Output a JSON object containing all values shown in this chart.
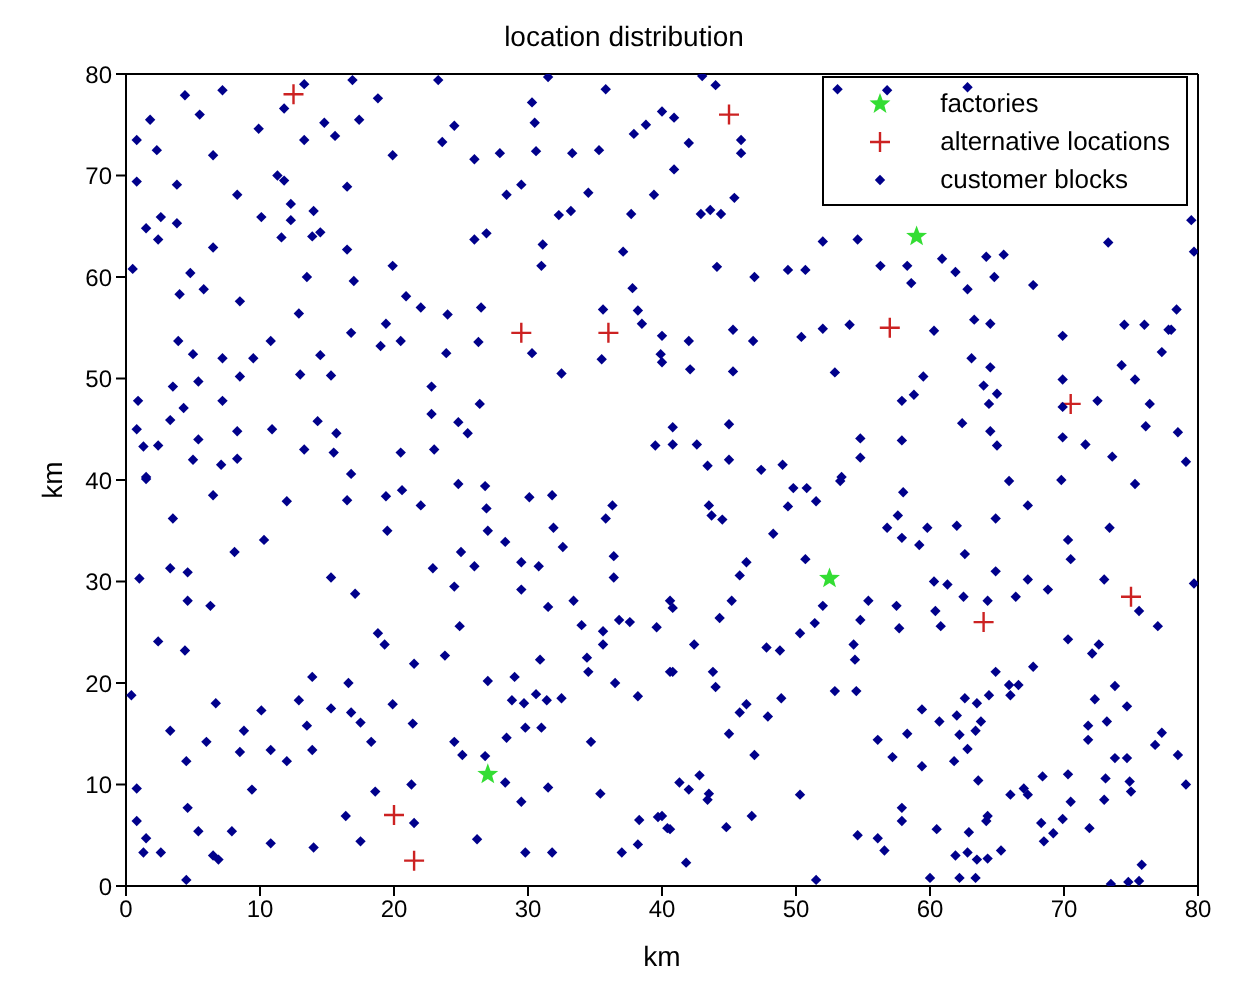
{
  "chart_data": {
    "type": "scatter",
    "title": "location distribution",
    "xlabel": "km",
    "ylabel": "km",
    "xlim": [
      0,
      80
    ],
    "ylim": [
      0,
      80
    ],
    "xticks": [
      0,
      10,
      20,
      30,
      40,
      50,
      60,
      70,
      80
    ],
    "yticks": [
      0,
      10,
      20,
      30,
      40,
      50,
      60,
      70,
      80
    ],
    "grid": false,
    "legend": "top right",
    "series": [
      {
        "name": "factories",
        "color": "#33dd33",
        "marker": "star",
        "x": [
          27,
          52.5,
          59
        ],
        "values": [
          11,
          30.3,
          64
        ]
      },
      {
        "name": "alternative locations",
        "color": "#cc2222",
        "marker": "cross",
        "x": [
          12.5,
          45,
          29.5,
          36,
          57,
          70.5,
          75,
          64,
          20,
          21.5
        ],
        "values": [
          78,
          76,
          54.5,
          54.5,
          55,
          47.5,
          28.5,
          26,
          7,
          2.5
        ]
      },
      {
        "name": "customer blocks",
        "color": "#00008b",
        "marker": "diamond",
        "x": [
          4.4,
          7.2,
          5.5,
          1.8,
          0.8,
          2.3,
          6.5,
          9.9,
          13.3,
          11.8,
          13.3,
          14.8,
          15.6,
          17.4,
          18.8,
          16.9,
          19.9,
          23.3,
          23.6,
          24.5,
          26,
          27.9,
          30.3,
          30.5,
          30.6,
          33.3,
          35.3,
          35.8,
          31.5,
          37.9,
          38.8,
          40,
          0.8,
          3.8,
          8.3,
          11.3,
          11.8,
          16.5,
          12.3,
          10.1,
          12.3,
          14,
          14.5,
          13.9,
          1.5,
          2.6,
          3.8,
          2.4,
          6.5,
          11.6,
          0.5,
          4.8,
          4,
          5.8,
          8.5,
          13.5,
          16.5,
          17,
          19.9,
          20.9,
          22,
          24,
          26.5,
          26,
          26.9,
          28.4,
          29.5,
          31.1,
          31,
          32.3,
          33.2,
          34.5,
          37.1,
          37.7,
          39.4,
          37.8,
          35.6,
          38.2,
          38.5,
          3.9,
          5,
          7.2,
          9.5,
          10.8,
          12.9,
          14.5,
          13,
          15.3,
          16.8,
          19,
          20.5,
          19.4,
          23.9,
          26.3,
          30.3,
          32.5,
          35.5,
          39.9,
          0.9,
          3.5,
          5.4,
          8.5,
          7.2,
          4.3,
          3.3,
          0.8,
          1.3,
          2.4,
          5,
          7.1,
          8.3,
          5.4,
          8.3,
          10.9,
          14.3,
          15.7,
          13.3,
          15.5,
          20.5,
          22.8,
          22.8,
          24.8,
          25.5,
          26.4,
          23,
          1.5,
          16.8,
          39.5,
          43,
          44,
          53.1,
          56.8,
          62.8,
          40.9,
          42,
          45.9,
          45.9,
          40.9,
          42.9,
          43.6,
          44.4,
          45.4,
          79.5,
          79.7,
          73.3,
          52,
          54.6,
          44.1,
          46.9,
          49.4,
          50.7,
          56.3,
          58.3,
          58.6,
          60.9,
          61.9,
          62.8,
          64.2,
          64.8,
          65.5,
          67.7,
          78.4,
          77.8,
          74.5,
          69.9,
          63.3,
          64.5,
          60.3,
          54,
          52,
          50.4,
          46.8,
          45.3,
          42,
          40,
          40,
          42.1,
          45.3,
          52.9,
          59.5,
          63.1,
          64.5,
          64,
          65,
          64.4,
          58.8,
          57.9,
          69.9,
          72.5,
          74.3,
          75.3,
          76,
          77.3,
          78,
          76.4,
          78.5,
          40.8,
          40.8,
          42.6,
          45,
          43.4,
          45,
          47.4,
          49,
          53.4,
          54.8,
          54.8,
          57.9,
          62.4,
          64.5,
          65,
          69.9,
          71.6,
          73.6,
          76.1,
          79.1,
          69.9,
          1.5,
          6.5,
          12,
          16.5,
          19.4,
          20.6,
          22,
          24.8,
          26.8,
          26.9,
          30.1,
          31.8,
          36.3,
          3.5,
          10.3,
          8.1,
          19.5,
          27,
          28.3,
          31.9,
          32.6,
          35.8,
          36.4,
          25,
          26,
          22.9,
          29.5,
          30.8,
          1,
          3.3,
          4.6,
          15.3,
          17.1,
          24.5,
          29.5,
          36.4,
          4.6,
          6.3,
          2.4,
          4.4,
          18.8,
          19.3,
          24.9,
          21.5,
          23.8,
          31.5,
          33.4,
          34,
          35.6,
          35.6,
          36.8,
          37.6,
          39.6,
          40.6,
          34.4,
          34.5,
          30.9,
          40.6,
          0.4,
          6.7,
          10.1,
          12.9,
          13.9,
          16.6,
          15.3,
          16.8,
          17.5,
          19.9,
          21.4,
          27,
          29,
          28.8,
          29.7,
          30.6,
          31.4,
          32.5,
          36.5,
          38.2,
          3.3,
          6,
          8.8,
          8.5,
          10.8,
          12,
          13.5,
          13.9,
          18.3,
          24.5,
          25.1,
          26.8,
          28.4,
          29.8,
          31,
          34.7,
          4.5,
          0.8,
          9.4,
          18.6,
          21.3,
          28.3,
          31.5,
          35.4,
          29.5,
          4.6,
          0.8,
          5.4,
          7.9,
          16.4,
          17.5,
          21.5,
          26.2,
          10.8,
          14,
          1.5,
          1.3,
          2.6,
          6.5,
          6.9,
          4.5,
          29.8,
          31.8,
          37,
          38.2,
          38.3,
          39.7,
          40.4,
          40.8,
          42.4,
          40.8,
          43.5,
          43.7,
          44.5,
          48.3,
          49.4,
          49.8,
          50.8,
          51.5,
          53.3,
          46.3,
          45.8,
          45.2,
          44.3,
          50.7,
          52,
          51.4,
          50.3,
          47.8,
          48.8,
          43.8,
          44,
          46.3,
          45.8,
          47.9,
          48.9,
          45,
          46.9,
          52.9,
          54.5,
          54.3,
          54.4,
          54.8,
          55.4,
          57.5,
          57.7,
          56.8,
          57.6,
          58,
          57.9,
          59.2,
          59.8,
          62,
          62.6,
          64.9,
          64.9,
          65.9,
          67.3,
          69.8,
          70.3,
          70.5,
          73.4,
          75.3,
          60.3,
          61.3,
          62.5,
          64.3,
          66.4,
          67.3,
          68.8,
          73,
          75.6,
          77,
          79.7,
          60.4,
          60.8,
          70.3,
          72.1,
          72.6,
          67.7,
          64.9,
          65.9,
          66.6,
          66,
          64.4,
          63.5,
          62.6,
          59.4,
          60.7,
          62,
          63.8,
          63.4,
          62.2,
          62.8,
          61.8,
          58.3,
          57.2,
          56.1,
          59.4,
          72.3,
          73.8,
          74.7,
          73.2,
          71.8,
          71.8,
          77.3,
          76.8,
          73.8,
          74.7,
          78.5,
          73.1,
          74.9,
          75,
          73,
          70.3,
          70.5,
          68.4,
          67,
          67.3,
          66,
          63.6,
          79.1,
          41.3,
          42.8,
          42,
          43.5,
          43.4,
          40,
          40.6,
          44.8,
          46.7,
          50.3,
          57.9,
          57.9,
          54.6,
          56.1,
          56.6,
          60.5,
          62.9,
          64.3,
          64.2,
          61.9,
          62.8,
          63.5,
          64.3,
          65.3,
          68.3,
          69.2,
          68.5,
          69.9,
          71.9,
          41.8,
          51.5,
          60,
          62.2,
          63.4,
          73.5,
          74.8,
          75.6,
          75.8
        ],
        "values": [
          77.9,
          78.4,
          76,
          75.5,
          73.5,
          72.5,
          72,
          74.6,
          79,
          76.6,
          73.5,
          75.2,
          73.9,
          75.5,
          77.6,
          79.4,
          72,
          79.4,
          73.3,
          74.9,
          71.6,
          72.2,
          77.2,
          75.2,
          72.4,
          72.2,
          72.5,
          78.5,
          79.7,
          74.1,
          75,
          76.3,
          69.4,
          69.1,
          68.1,
          70,
          69.5,
          68.9,
          67.2,
          65.9,
          65.6,
          66.5,
          64.4,
          64,
          64.8,
          65.9,
          65.3,
          63.7,
          62.9,
          63.9,
          60.8,
          60.4,
          58.3,
          58.8,
          57.6,
          60,
          62.7,
          59.6,
          61.1,
          58.1,
          57,
          56.3,
          57,
          63.7,
          64.3,
          68.1,
          69.1,
          63.2,
          61.1,
          66.1,
          66.5,
          68.3,
          62.5,
          66.2,
          68.1,
          58.9,
          56.8,
          56.7,
          55.4,
          53.7,
          52.4,
          52,
          52,
          53.7,
          56.4,
          52.3,
          50.4,
          50.3,
          54.5,
          53.2,
          53.7,
          55.4,
          52.5,
          53.6,
          52.5,
          50.5,
          51.9,
          52.4,
          47.8,
          49.2,
          49.7,
          50.2,
          47.8,
          47.1,
          45.9,
          45,
          43.3,
          43.4,
          42,
          41.5,
          42.1,
          44,
          44.8,
          45,
          45.8,
          44.6,
          43,
          42.7,
          42.7,
          46.5,
          49.2,
          45.7,
          44.6,
          47.5,
          43,
          40.3,
          40.6,
          43.4,
          79.8,
          78.9,
          78.5,
          78.4,
          78.7,
          75.7,
          73.2,
          73.5,
          72.2,
          70.6,
          66.2,
          66.6,
          66.2,
          67.8,
          65.6,
          62.5,
          63.4,
          63.5,
          63.7,
          61,
          60,
          60.7,
          60.7,
          61.1,
          61.1,
          59.4,
          61.8,
          60.5,
          58.8,
          62,
          60,
          62.2,
          59.2,
          56.8,
          54.8,
          55.3,
          54.2,
          55.8,
          55.4,
          54.7,
          55.3,
          54.9,
          54.1,
          53.7,
          54.8,
          53.7,
          54.2,
          51.6,
          50.9,
          50.7,
          50.6,
          50.2,
          52,
          51.1,
          49.3,
          48.5,
          47.5,
          48.4,
          47.8,
          49.9,
          47.8,
          51.3,
          49.9,
          55.3,
          52.6,
          54.8,
          47.5,
          44.7,
          45.2,
          43.5,
          43.5,
          45.5,
          41.4,
          42,
          41,
          41.5,
          40.3,
          44.1,
          42.2,
          43.9,
          45.6,
          44.8,
          43.4,
          44.2,
          43.5,
          42.3,
          45.3,
          41.8,
          47.2,
          40.1,
          38.5,
          37.9,
          38,
          38.4,
          39,
          37.5,
          39.6,
          39.4,
          37.2,
          38.3,
          38.5,
          37.5,
          36.2,
          34.1,
          32.9,
          35,
          35,
          33.9,
          35.3,
          33.4,
          36.2,
          32.5,
          32.9,
          31.5,
          31.3,
          31.9,
          31.5,
          30.3,
          31.3,
          30.9,
          30.4,
          28.8,
          29.5,
          29.2,
          30.4,
          28.1,
          27.6,
          24.1,
          23.2,
          24.9,
          23.8,
          25.6,
          21.9,
          22.7,
          27.5,
          28.1,
          25.7,
          25.1,
          23.8,
          26.2,
          26,
          25.5,
          28.1,
          22.5,
          21.1,
          22.3,
          21.1,
          18.8,
          18,
          17.3,
          18.3,
          20.6,
          20,
          17.5,
          17.1,
          16.1,
          17.9,
          16,
          20.2,
          20.6,
          18.3,
          18,
          18.9,
          18.3,
          18.5,
          20,
          18.7,
          15.3,
          14.2,
          15.3,
          13.2,
          13.4,
          12.3,
          15.8,
          13.4,
          14.2,
          14.2,
          12.9,
          12.8,
          14.6,
          15.6,
          15.6,
          14.2,
          12.3,
          9.6,
          9.5,
          9.3,
          10,
          10.2,
          9.7,
          9.1,
          8.3,
          7.7,
          6.4,
          5.4,
          5.4,
          6.9,
          4.4,
          6.2,
          4.6,
          4.2,
          3.8,
          4.7,
          3.3,
          3.3,
          3,
          2.6,
          0.6,
          3.3,
          3.3,
          3.3,
          4.1,
          6.5,
          6.8,
          5.7,
          27.4,
          23.8,
          21.1,
          37.5,
          36.5,
          36.1,
          34.7,
          37.4,
          39.2,
          39.2,
          37.9,
          39.9,
          31.9,
          30.6,
          28.1,
          26.4,
          32.2,
          27.6,
          25.9,
          24.9,
          23.5,
          23.2,
          21.1,
          19.6,
          17.9,
          17.1,
          16.7,
          18.5,
          15,
          12.9,
          19.2,
          19.2,
          23.8,
          22.3,
          26.2,
          28.1,
          27.6,
          25.4,
          35.3,
          36.5,
          38.8,
          34.3,
          33.6,
          35.3,
          35.5,
          32.7,
          36.2,
          31,
          39.9,
          37.5,
          40,
          34.1,
          32.2,
          35.3,
          39.6,
          30,
          29.7,
          28.5,
          28.1,
          28.5,
          30.2,
          29.2,
          30.2,
          27.1,
          25.6,
          29.8,
          27.1,
          25.6,
          24.3,
          22.9,
          23.8,
          21.6,
          21.1,
          19.8,
          19.8,
          18.8,
          18.8,
          18,
          18.5,
          17.4,
          16.2,
          16.8,
          16.2,
          15.3,
          14.9,
          13.5,
          12.3,
          15,
          12.7,
          14.4,
          11.8,
          18.4,
          19.7,
          17.7,
          16.2,
          15.8,
          14.4,
          15.1,
          13.9,
          12.6,
          12.6,
          12.9,
          10.6,
          10.3,
          9.3,
          8.5,
          11,
          8.3,
          10.8,
          9.6,
          9,
          9,
          10.4,
          10,
          10.2,
          10.9,
          9.5,
          9.1,
          8.5,
          6.9,
          5.6,
          5.8,
          6.9,
          9,
          7.7,
          6.4,
          5,
          4.7,
          3.5,
          5.6,
          5.3,
          6.9,
          6.4,
          3,
          3.3,
          2.6,
          2.7,
          3.5,
          6.2,
          5.2,
          4.4,
          6.6,
          5.7,
          2.3,
          0.6,
          0.8,
          0.8,
          0.8,
          0.2,
          0.4,
          0.5,
          2.1
        ]
      }
    ]
  }
}
